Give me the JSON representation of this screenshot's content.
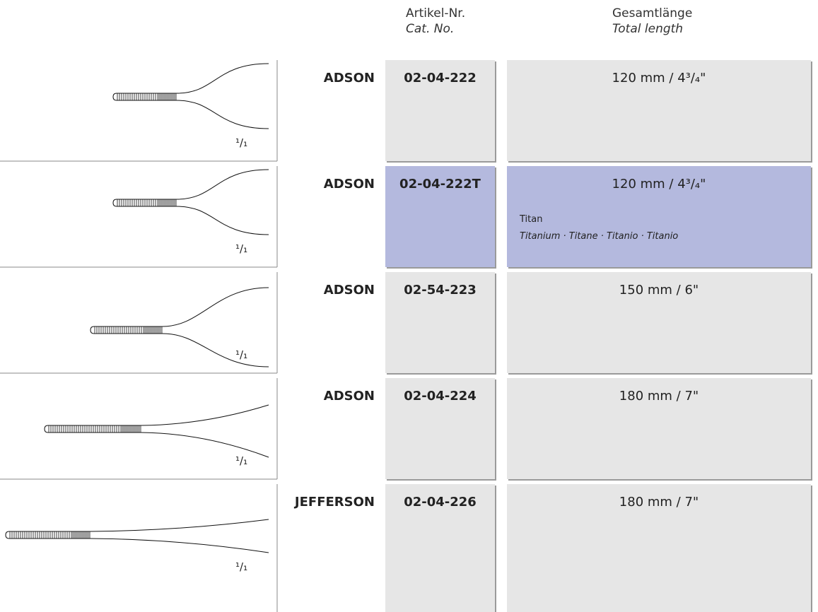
{
  "header": {
    "cat_no_de": "Artikel-Nr.",
    "cat_no_en": "Cat. No.",
    "length_de": "Gesamtlänge",
    "length_en": "Total length"
  },
  "rows": [
    {
      "name": "ADSON",
      "cat_no": "02-04-222",
      "length": "120 mm / 4³/₄\"",
      "scale": "¹/₁"
    },
    {
      "name": "ADSON",
      "cat_no": "02-04-222T",
      "length": "120 mm / 4³/₄\"",
      "scale": "¹/₁",
      "material_de": "Titan",
      "material_en": "Titanium · Titane · Titanio · Titanio"
    },
    {
      "name": "ADSON",
      "cat_no": "02-54-223",
      "length": "150 mm / 6\"",
      "scale": "¹/₁"
    },
    {
      "name": "ADSON",
      "cat_no": "02-04-224",
      "length": "180 mm / 7\"",
      "scale": "¹/₁"
    },
    {
      "name": "JEFFERSON",
      "cat_no": "02-04-226",
      "length": "180 mm / 7\"",
      "scale": "¹/₁"
    }
  ]
}
